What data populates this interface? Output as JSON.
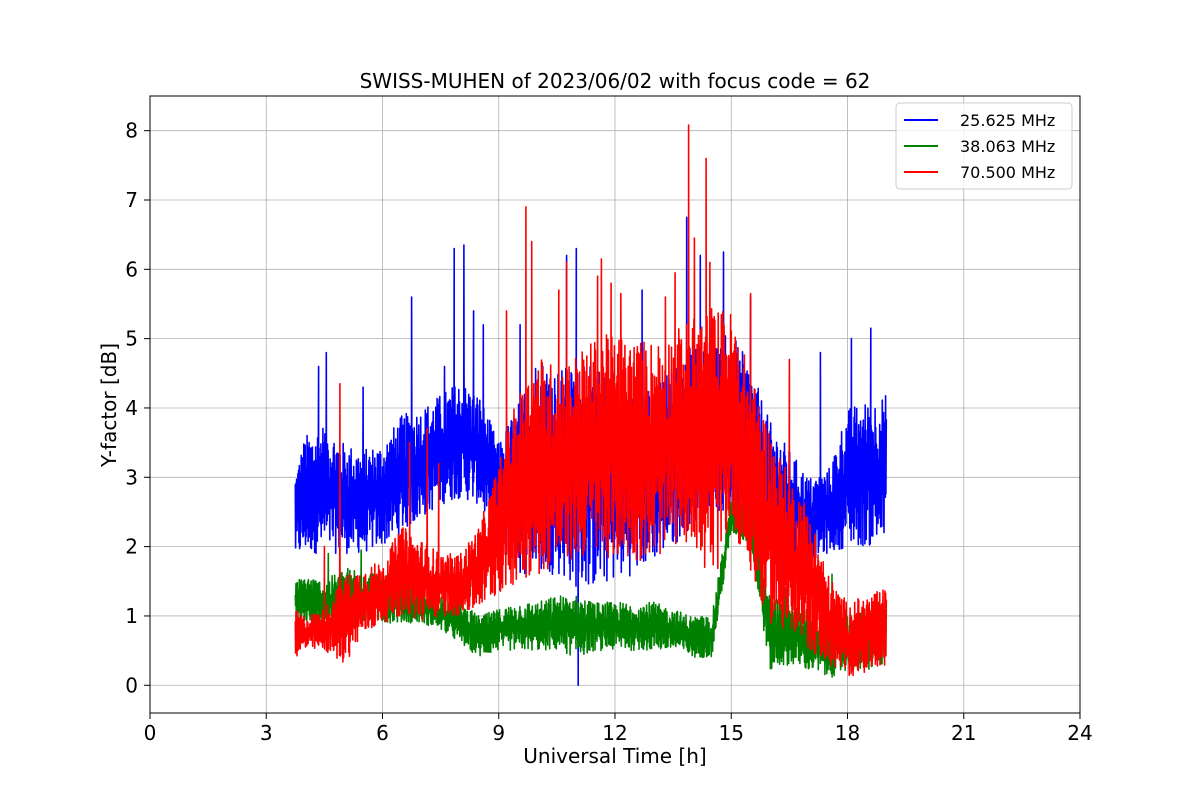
{
  "chart_data": {
    "type": "line",
    "title": "SWISS-MUHEN of 2023/06/02 with focus code = 62",
    "xlabel": "Universal Time [h]",
    "ylabel": "Y-factor [dB]",
    "xlim": [
      0,
      24
    ],
    "ylim": [
      -0.4,
      8.5
    ],
    "xticks": [
      0,
      3,
      6,
      9,
      12,
      15,
      18,
      21,
      24
    ],
    "yticks": [
      0,
      1,
      2,
      3,
      4,
      5,
      6,
      7,
      8
    ],
    "grid": true,
    "legend_position": "top-right",
    "series": [
      {
        "name": "25.625 MHz",
        "color": "#0000ff",
        "x": [
          3.75,
          4.0,
          4.5,
          5.0,
          5.5,
          6.0,
          6.5,
          7.0,
          7.5,
          8.0,
          8.5,
          9.0,
          9.5,
          10.0,
          10.5,
          11.0,
          11.5,
          12.0,
          12.5,
          13.0,
          13.5,
          14.0,
          14.5,
          15.0,
          15.5,
          16.0,
          16.5,
          17.0,
          17.5,
          18.0,
          18.5,
          19.0
        ],
        "low": [
          1.8,
          1.9,
          1.9,
          1.9,
          1.9,
          2.0,
          2.2,
          2.4,
          2.6,
          2.7,
          2.6,
          2.0,
          1.6,
          1.6,
          1.6,
          1.4,
          1.4,
          1.5,
          1.6,
          1.8,
          2.0,
          2.3,
          2.6,
          2.3,
          2.3,
          2.0,
          1.8,
          1.8,
          1.9,
          2.0,
          2.0,
          2.0
        ],
        "high": [
          3.1,
          3.6,
          3.8,
          3.5,
          3.4,
          3.5,
          3.9,
          4.0,
          4.2,
          4.4,
          4.2,
          3.5,
          4.1,
          4.8,
          4.6,
          4.6,
          4.6,
          4.4,
          4.2,
          4.3,
          4.6,
          5.0,
          5.0,
          5.1,
          4.6,
          3.8,
          3.4,
          3.0,
          3.1,
          4.0,
          4.1,
          4.2
        ],
        "peaks": [
          [
            4.35,
            4.6
          ],
          [
            4.55,
            4.8
          ],
          [
            5.5,
            4.3
          ],
          [
            6.75,
            5.6
          ],
          [
            7.6,
            4.6
          ],
          [
            7.85,
            6.3
          ],
          [
            8.1,
            6.35
          ],
          [
            8.35,
            5.4
          ],
          [
            8.6,
            5.2
          ],
          [
            9.55,
            5.2
          ],
          [
            10.75,
            6.2
          ],
          [
            11.0,
            6.3
          ],
          [
            11.05,
            0.0
          ],
          [
            12.7,
            5.7
          ],
          [
            13.85,
            6.75
          ],
          [
            14.2,
            6.2
          ],
          [
            14.8,
            6.25
          ],
          [
            15.5,
            5.6
          ],
          [
            17.3,
            4.8
          ],
          [
            18.1,
            5.0
          ],
          [
            18.6,
            5.15
          ]
        ]
      },
      {
        "name": "38.063 MHz",
        "color": "#008000",
        "x": [
          3.75,
          4.0,
          4.5,
          5.0,
          5.5,
          6.0,
          6.5,
          7.0,
          7.5,
          8.0,
          8.5,
          9.0,
          9.5,
          10.0,
          10.5,
          11.0,
          11.5,
          12.0,
          12.5,
          13.0,
          13.5,
          14.0,
          14.5,
          15.0,
          15.5,
          16.0,
          16.5,
          17.0,
          17.5,
          18.0,
          18.5,
          19.0
        ],
        "low": [
          0.9,
          0.9,
          0.8,
          0.8,
          0.9,
          0.9,
          0.9,
          0.9,
          0.8,
          0.6,
          0.4,
          0.5,
          0.5,
          0.5,
          0.5,
          0.4,
          0.5,
          0.5,
          0.5,
          0.5,
          0.5,
          0.4,
          0.4,
          2.2,
          2.0,
          0.2,
          0.3,
          0.2,
          0.1,
          0.2,
          0.2,
          0.3
        ],
        "high": [
          1.5,
          1.6,
          1.5,
          1.7,
          1.7,
          1.6,
          1.5,
          1.4,
          1.3,
          1.2,
          1.0,
          1.1,
          1.2,
          1.2,
          1.3,
          1.3,
          1.2,
          1.2,
          1.2,
          1.2,
          1.1,
          1.0,
          1.0,
          2.7,
          2.6,
          1.3,
          1.2,
          1.1,
          1.0,
          1.0,
          1.1,
          1.3
        ],
        "peaks": [
          [
            4.6,
            1.9
          ],
          [
            5.45,
            1.95
          ],
          [
            15.1,
            2.9
          ],
          [
            15.75,
            1.8
          ],
          [
            16.4,
            1.4
          ],
          [
            17.6,
            1.6
          ]
        ]
      },
      {
        "name": "70.500 MHz",
        "color": "#ff0000",
        "x": [
          3.75,
          4.0,
          4.5,
          5.0,
          5.5,
          6.0,
          6.5,
          7.0,
          7.5,
          8.0,
          8.5,
          9.0,
          9.5,
          10.0,
          10.5,
          11.0,
          11.5,
          12.0,
          12.5,
          13.0,
          13.5,
          14.0,
          14.5,
          15.0,
          15.5,
          16.0,
          16.5,
          17.0,
          17.5,
          18.0,
          18.5,
          19.0
        ],
        "low": [
          0.4,
          0.5,
          0.5,
          0.3,
          0.7,
          0.9,
          1.0,
          0.9,
          1.0,
          1.0,
          1.1,
          1.3,
          1.5,
          1.6,
          1.7,
          1.8,
          1.9,
          1.8,
          1.8,
          1.8,
          2.0,
          2.1,
          1.3,
          2.4,
          1.5,
          0.9,
          0.7,
          0.5,
          0.3,
          0.1,
          0.2,
          0.3
        ],
        "high": [
          1.1,
          1.0,
          1.1,
          1.6,
          1.7,
          1.8,
          2.3,
          2.1,
          1.9,
          1.9,
          2.3,
          3.2,
          4.2,
          4.8,
          4.6,
          4.8,
          5.0,
          5.1,
          5.0,
          5.0,
          5.1,
          5.3,
          5.5,
          5.4,
          4.5,
          3.7,
          3.0,
          2.6,
          1.6,
          1.2,
          1.3,
          1.4
        ],
        "peaks": [
          [
            4.5,
            2.0
          ],
          [
            4.9,
            4.35
          ],
          [
            6.7,
            3.5
          ],
          [
            7.15,
            3.7
          ],
          [
            7.45,
            3.2
          ],
          [
            9.2,
            5.4
          ],
          [
            9.7,
            6.9
          ],
          [
            9.85,
            6.4
          ],
          [
            10.55,
            5.7
          ],
          [
            10.75,
            6.1
          ],
          [
            11.55,
            5.9
          ],
          [
            11.65,
            6.15
          ],
          [
            11.9,
            5.8
          ],
          [
            12.15,
            5.65
          ],
          [
            13.3,
            5.6
          ],
          [
            13.55,
            5.95
          ],
          [
            13.9,
            8.08
          ],
          [
            14.05,
            6.45
          ],
          [
            14.35,
            7.6
          ],
          [
            14.45,
            6.1
          ],
          [
            15.5,
            5.65
          ],
          [
            16.5,
            4.7
          ]
        ]
      }
    ]
  }
}
